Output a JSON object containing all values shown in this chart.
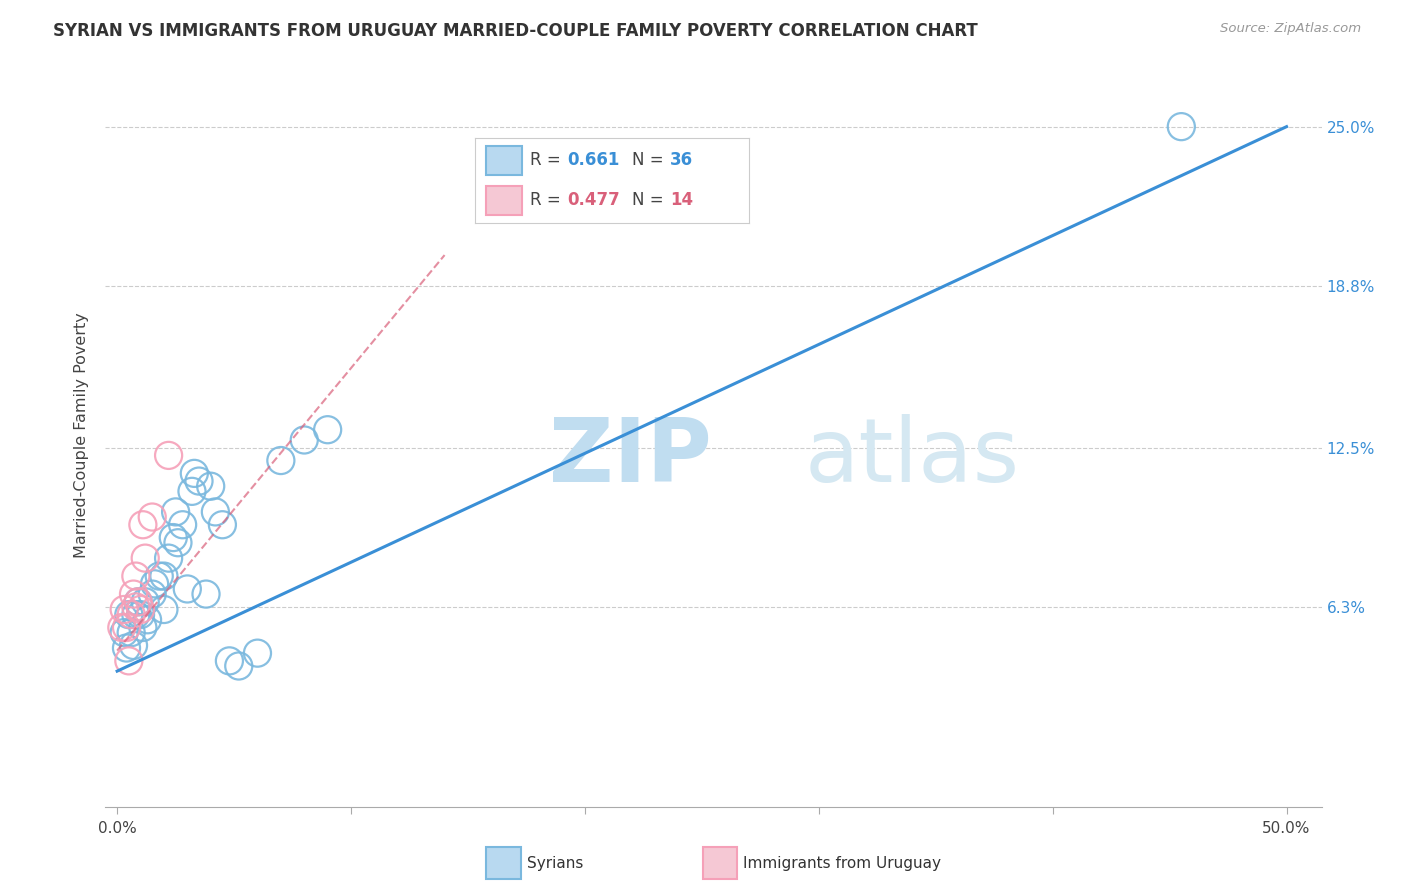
{
  "title": "SYRIAN VS IMMIGRANTS FROM URUGUAY MARRIED-COUPLE FAMILY POVERTY CORRELATION CHART",
  "source": "Source: ZipAtlas.com",
  "ylabel": "Married-Couple Family Poverty",
  "xlim": [
    -0.005,
    0.515
  ],
  "ylim": [
    -0.015,
    0.275
  ],
  "xtick_vals": [
    0.0,
    0.1,
    0.2,
    0.3,
    0.4,
    0.5
  ],
  "xtick_labels_shown": {
    "0.0": "0.0%",
    "0.5": "50.0%"
  },
  "ytick_vals": [
    0.063,
    0.125,
    0.188,
    0.25
  ],
  "ytick_labels": [
    "6.3%",
    "12.5%",
    "18.8%",
    "25.0%"
  ],
  "background_color": "#ffffff",
  "grid_color": "#cccccc",
  "syrian_color": "#7ab8de",
  "uruguay_color": "#f5a0b8",
  "syrian_line_color": "#3a8fd6",
  "uruguay_line_color": "#d9607a",
  "legend_R1": "0.661",
  "legend_N1": "36",
  "legend_R2": "0.477",
  "legend_N2": "14",
  "legend_box_color": "#b8d9f0",
  "legend_box_color2": "#f5c8d4",
  "syrians_x": [
    0.003,
    0.004,
    0.005,
    0.006,
    0.007,
    0.008,
    0.009,
    0.01,
    0.011,
    0.012,
    0.013,
    0.015,
    0.016,
    0.018,
    0.02,
    0.02,
    0.022,
    0.024,
    0.025,
    0.026,
    0.028,
    0.03,
    0.032,
    0.033,
    0.035,
    0.038,
    0.04,
    0.042,
    0.045,
    0.048,
    0.052,
    0.06,
    0.07,
    0.08,
    0.09,
    0.455
  ],
  "syrians_y": [
    0.053,
    0.047,
    0.06,
    0.053,
    0.048,
    0.06,
    0.065,
    0.06,
    0.055,
    0.065,
    0.058,
    0.068,
    0.072,
    0.075,
    0.075,
    0.062,
    0.082,
    0.09,
    0.1,
    0.088,
    0.095,
    0.07,
    0.108,
    0.115,
    0.112,
    0.068,
    0.11,
    0.1,
    0.095,
    0.042,
    0.04,
    0.045,
    0.12,
    0.128,
    0.132,
    0.25
  ],
  "uruguay_x": [
    0.002,
    0.003,
    0.004,
    0.005,
    0.006,
    0.007,
    0.008,
    0.008,
    0.009,
    0.01,
    0.011,
    0.012,
    0.015,
    0.022
  ],
  "uruguay_y": [
    0.055,
    0.062,
    0.055,
    0.042,
    0.06,
    0.068,
    0.063,
    0.075,
    0.065,
    0.062,
    0.095,
    0.082,
    0.098,
    0.122
  ],
  "syrian_regline_x": [
    0.0,
    0.5
  ],
  "syrian_regline_y": [
    0.038,
    0.25
  ],
  "uruguay_regline_x": [
    0.0,
    0.14
  ],
  "uruguay_regline_y": [
    0.046,
    0.2
  ],
  "watermark_ZIP_color": "#c0ddf0",
  "watermark_atlas_color": "#d5e8f2"
}
